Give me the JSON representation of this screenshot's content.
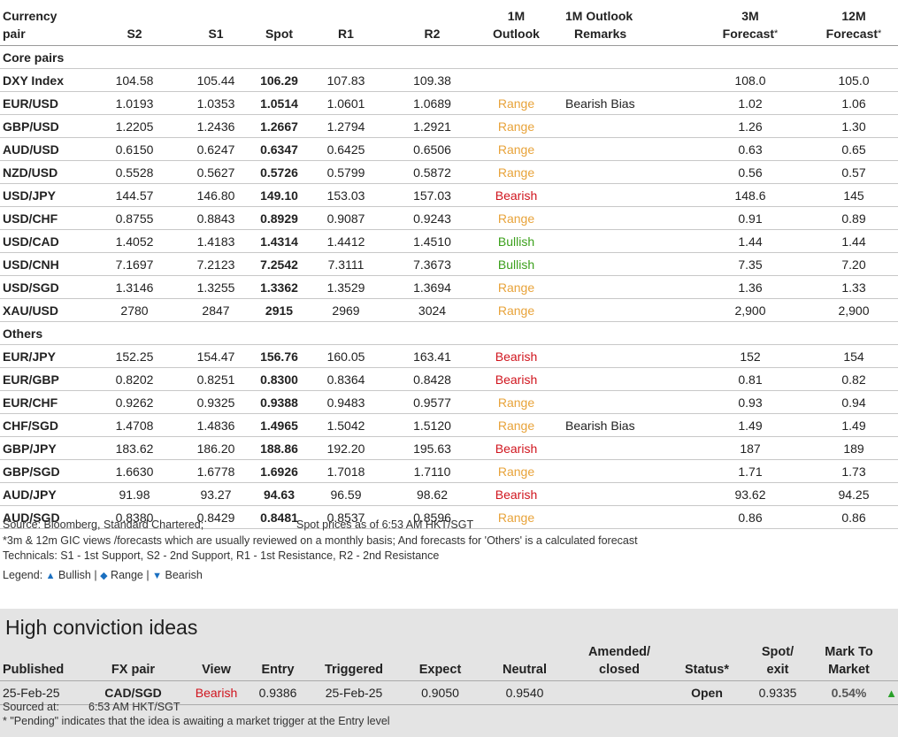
{
  "table": {
    "headers": {
      "pair_l1": "Currency",
      "pair_l2": "pair",
      "s2": "S2",
      "s1": "S1",
      "spot": "Spot",
      "r1": "R1",
      "r2": "R2",
      "outlook_l1": "1M",
      "outlook_l2": "Outlook",
      "remarks_l1": "1M Outlook",
      "remarks_l2": "Remarks",
      "f3m_l1": "3M",
      "f3m_l2": "Forecast",
      "f3m_star": "*",
      "f12m_l1": "12M",
      "f12m_l2": "Forecast",
      "f12m_star": "*"
    },
    "sections": [
      {
        "title": "Core pairs",
        "rows": [
          {
            "pair": "DXY Index",
            "s2": "104.58",
            "s1": "105.44",
            "spot": "106.29",
            "r1": "107.83",
            "r2": "109.38",
            "outlook": "",
            "remark": "",
            "f3m": "108.0",
            "f12m": "105.0"
          },
          {
            "pair": "EUR/USD",
            "s2": "1.0193",
            "s1": "1.0353",
            "spot": "1.0514",
            "r1": "1.0601",
            "r2": "1.0689",
            "outlook": "Range",
            "remark": "Bearish Bias",
            "f3m": "1.02",
            "f12m": "1.06"
          },
          {
            "pair": "GBP/USD",
            "s2": "1.2205",
            "s1": "1.2436",
            "spot": "1.2667",
            "r1": "1.2794",
            "r2": "1.2921",
            "outlook": "Range",
            "remark": "",
            "f3m": "1.26",
            "f12m": "1.30"
          },
          {
            "pair": "AUD/USD",
            "s2": "0.6150",
            "s1": "0.6247",
            "spot": "0.6347",
            "r1": "0.6425",
            "r2": "0.6506",
            "outlook": "Range",
            "remark": "",
            "f3m": "0.63",
            "f12m": "0.65"
          },
          {
            "pair": "NZD/USD",
            "s2": "0.5528",
            "s1": "0.5627",
            "spot": "0.5726",
            "r1": "0.5799",
            "r2": "0.5872",
            "outlook": "Range",
            "remark": "",
            "f3m": "0.56",
            "f12m": "0.57"
          },
          {
            "pair": "USD/JPY",
            "s2": "144.57",
            "s1": "146.80",
            "spot": "149.10",
            "r1": "153.03",
            "r2": "157.03",
            "outlook": "Bearish",
            "remark": "",
            "f3m": "148.6",
            "f12m": "145"
          },
          {
            "pair": "USD/CHF",
            "s2": "0.8755",
            "s1": "0.8843",
            "spot": "0.8929",
            "r1": "0.9087",
            "r2": "0.9243",
            "outlook": "Range",
            "remark": "",
            "f3m": "0.91",
            "f12m": "0.89"
          },
          {
            "pair": "USD/CAD",
            "s2": "1.4052",
            "s1": "1.4183",
            "spot": "1.4314",
            "r1": "1.4412",
            "r2": "1.4510",
            "outlook": "Bullish",
            "remark": "",
            "f3m": "1.44",
            "f12m": "1.44"
          },
          {
            "pair": "USD/CNH",
            "s2": "7.1697",
            "s1": "7.2123",
            "spot": "7.2542",
            "r1": "7.3111",
            "r2": "7.3673",
            "outlook": "Bullish",
            "remark": "",
            "f3m": "7.35",
            "f12m": "7.20"
          },
          {
            "pair": "USD/SGD",
            "s2": "1.3146",
            "s1": "1.3255",
            "spot": "1.3362",
            "r1": "1.3529",
            "r2": "1.3694",
            "outlook": "Range",
            "remark": "",
            "f3m": "1.36",
            "f12m": "1.33"
          },
          {
            "pair": "XAU/USD",
            "s2": "2780",
            "s1": "2847",
            "spot": "2915",
            "r1": "2969",
            "r2": "3024",
            "outlook": "Range",
            "remark": "",
            "f3m": "2,900",
            "f12m": "2,900"
          }
        ]
      },
      {
        "title": "Others",
        "rows": [
          {
            "pair": "EUR/JPY",
            "s2": "152.25",
            "s1": "154.47",
            "spot": "156.76",
            "r1": "160.05",
            "r2": "163.41",
            "outlook": "Bearish",
            "remark": "",
            "f3m": "152",
            "f12m": "154"
          },
          {
            "pair": "EUR/GBP",
            "s2": "0.8202",
            "s1": "0.8251",
            "spot": "0.8300",
            "r1": "0.8364",
            "r2": "0.8428",
            "outlook": "Bearish",
            "remark": "",
            "f3m": "0.81",
            "f12m": "0.82"
          },
          {
            "pair": "EUR/CHF",
            "s2": "0.9262",
            "s1": "0.9325",
            "spot": "0.9388",
            "r1": "0.9483",
            "r2": "0.9577",
            "outlook": "Range",
            "remark": "",
            "f3m": "0.93",
            "f12m": "0.94"
          },
          {
            "pair": "CHF/SGD",
            "s2": "1.4708",
            "s1": "1.4836",
            "spot": "1.4965",
            "r1": "1.5042",
            "r2": "1.5120",
            "outlook": "Range",
            "remark": "Bearish Bias",
            "f3m": "1.49",
            "f12m": "1.49"
          },
          {
            "pair": "GBP/JPY",
            "s2": "183.62",
            "s1": "186.20",
            "spot": "188.86",
            "r1": "192.20",
            "r2": "195.63",
            "outlook": "Bearish",
            "remark": "",
            "f3m": "187",
            "f12m": "189"
          },
          {
            "pair": "GBP/SGD",
            "s2": "1.6630",
            "s1": "1.6778",
            "spot": "1.6926",
            "r1": "1.7018",
            "r2": "1.7110",
            "outlook": "Range",
            "remark": "",
            "f3m": "1.71",
            "f12m": "1.73"
          },
          {
            "pair": "AUD/JPY",
            "s2": "91.98",
            "s1": "93.27",
            "spot": "94.63",
            "r1": "96.59",
            "r2": "98.62",
            "outlook": "Bearish",
            "remark": "",
            "f3m": "93.62",
            "f12m": "94.25"
          },
          {
            "pair": "AUD/SGD",
            "s2": "0.8380",
            "s1": "0.8429",
            "spot": "0.8481",
            "r1": "0.8537",
            "r2": "0.8596",
            "outlook": "Range",
            "remark": "",
            "f3m": "0.86",
            "f12m": "0.86"
          }
        ]
      }
    ]
  },
  "colors": {
    "Range": "#e8a33a",
    "Bearish": "#d0141d",
    "Bullish": "#3ca01c"
  },
  "notes": {
    "source": "Source: Bloomberg, Standard Chartered;",
    "spot_time": "Spot prices as of 6:53 AM HKT/SGT",
    "forecast_note": "*3m & 12m GIC views /forecasts which are usually reviewed on a monthly basis; And forecasts for 'Others' is a calculated forecast",
    "technicals": "Technicals: S1 - 1st Support, S2 - 2nd Support, R1 - 1st Resistance, R2 - 2nd Resistance",
    "legend_label": "Legend:",
    "legend_bullish": "Bullish",
    "legend_range": "Range",
    "legend_bearish": "Bearish",
    "legend_sep": "|",
    "bullish_icon": "triangle-up-icon",
    "range_icon": "diamond-icon",
    "bearish_icon": "triangle-down-icon"
  },
  "high_conviction": {
    "title": "High conviction ideas",
    "headers": {
      "published": "Published",
      "pair": "FX pair",
      "view": "View",
      "entry": "Entry",
      "triggered": "Triggered",
      "expect": "Expect",
      "neutral": "Neutral",
      "amended_l1": "Amended/",
      "amended_l2": "closed",
      "status": "Status*",
      "spot_l1": "Spot/",
      "spot_l2": "exit",
      "mtm_l1": "Mark To",
      "mtm_l2": "Market"
    },
    "row": {
      "published": "25-Feb-25",
      "pair": "CAD/SGD",
      "view": "Bearish",
      "entry": "0.9386",
      "triggered": "25-Feb-25",
      "expect": "0.9050",
      "neutral": "0.9540",
      "amended": "",
      "status": "Open",
      "spot": "0.9335",
      "mtm": "0.54%",
      "mtm_icon": "triangle-up-icon"
    },
    "sourced_label": "Sourced at:",
    "sourced_time": "6:53 AM HKT/SGT",
    "pending_note": "* \"Pending\" indicates that the idea is awaiting a market trigger at the Entry level"
  }
}
